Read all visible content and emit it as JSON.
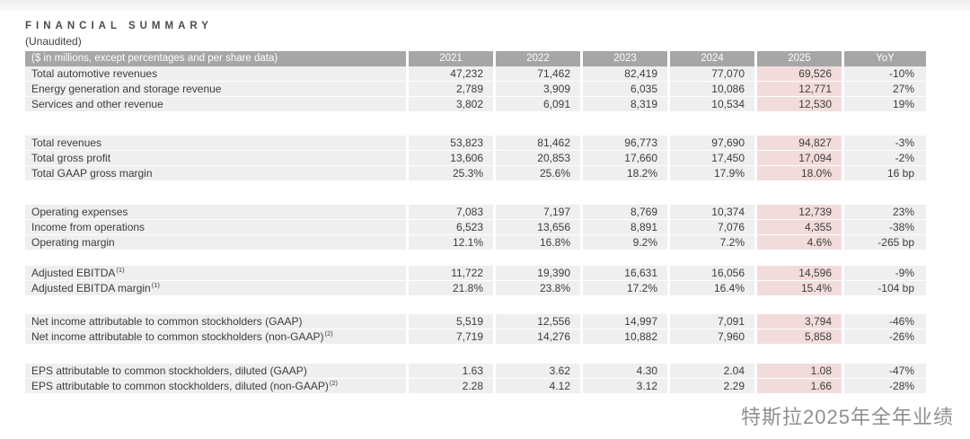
{
  "page": {
    "title": "FINANCIAL SUMMARY",
    "subtitle": "(Unaudited)",
    "footer_caption": "特斯拉2025年全年业绩"
  },
  "colors": {
    "header_bg": "#a6a6a6",
    "header_text": "#fdfdfd",
    "row_bg": "#efefef",
    "highlight_bg": "#f2dcdb",
    "text_color": "#3c3c3c"
  },
  "table": {
    "header": {
      "label": "($ in millions, except percentages and per share data)",
      "columns": [
        "2021",
        "2022",
        "2023",
        "2024",
        "2025",
        "YoY"
      ]
    },
    "highlight_column_index": 4,
    "sections": [
      {
        "rows": [
          {
            "label": "Total automotive revenues",
            "sup": "",
            "values": [
              "47,232",
              "71,462",
              "82,419",
              "77,070",
              "69,526",
              "-10%"
            ]
          },
          {
            "label": "Energy generation and storage revenue",
            "sup": "",
            "values": [
              "2,789",
              "3,909",
              "6,035",
              "10,086",
              "12,771",
              "27%"
            ]
          },
          {
            "label": "Services and other revenue",
            "sup": "",
            "values": [
              "3,802",
              "6,091",
              "8,319",
              "10,534",
              "12,530",
              "19%"
            ]
          }
        ]
      },
      {
        "rows": [
          {
            "label": "Total revenues",
            "sup": "",
            "values": [
              "53,823",
              "81,462",
              "96,773",
              "97,690",
              "94,827",
              "-3%"
            ]
          },
          {
            "label": "Total gross profit",
            "sup": "",
            "values": [
              "13,606",
              "20,853",
              "17,660",
              "17,450",
              "17,094",
              "-2%"
            ]
          },
          {
            "label": "Total GAAP gross margin",
            "sup": "",
            "values": [
              "25.3%",
              "25.6%",
              "18.2%",
              "17.9%",
              "18.0%",
              "16 bp"
            ]
          }
        ]
      },
      {
        "rows": [
          {
            "label": "Operating expenses",
            "sup": "",
            "values": [
              "7,083",
              "7,197",
              "8,769",
              "10,374",
              "12,739",
              "23%"
            ]
          },
          {
            "label": "Income from operations",
            "sup": "",
            "values": [
              "6,523",
              "13,656",
              "8,891",
              "7,076",
              "4,355",
              "-38%"
            ]
          },
          {
            "label": "Operating margin",
            "sup": "",
            "values": [
              "12.1%",
              "16.8%",
              "9.2%",
              "7.2%",
              "4.6%",
              "-265 bp"
            ]
          }
        ]
      },
      {
        "rows": [
          {
            "label": "Adjusted EBITDA",
            "sup": "(1)",
            "values": [
              "11,722",
              "19,390",
              "16,631",
              "16,056",
              "14,596",
              "-9%"
            ]
          },
          {
            "label": "Adjusted EBITDA margin",
            "sup": "(1)",
            "values": [
              "21.8%",
              "23.8%",
              "17.2%",
              "16.4%",
              "15.4%",
              "-104 bp"
            ]
          }
        ]
      },
      {
        "rows": [
          {
            "label": "Net income attributable to common stockholders (GAAP)",
            "sup": "",
            "values": [
              "5,519",
              "12,556",
              "14,997",
              "7,091",
              "3,794",
              "-46%"
            ]
          },
          {
            "label": "Net income attributable to common stockholders (non-GAAP)",
            "sup": "(2)",
            "values": [
              "7,719",
              "14,276",
              "10,882",
              "7,960",
              "5,858",
              "-26%"
            ]
          }
        ]
      },
      {
        "rows": [
          {
            "label": "EPS attributable to common stockholders, diluted (GAAP)",
            "sup": "",
            "values": [
              "1.63",
              "3.62",
              "4.30",
              "2.04",
              "1.08",
              "-47%"
            ]
          },
          {
            "label": "EPS attributable to common stockholders, diluted (non-GAAP)",
            "sup": "(2)",
            "values": [
              "2.28",
              "4.12",
              "3.12",
              "2.29",
              "1.66",
              "-28%"
            ]
          }
        ]
      }
    ]
  }
}
